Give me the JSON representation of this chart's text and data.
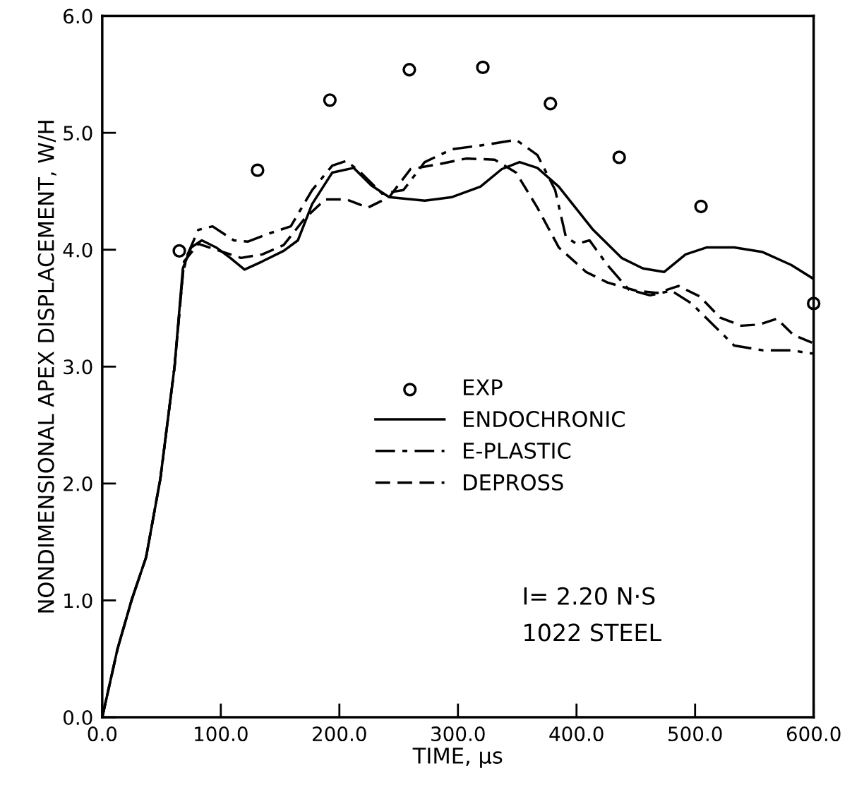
{
  "chart_data": {
    "type": "line",
    "xlabel": "TIME, μs",
    "ylabel": "NONDIMENSIONAL APEX DISPLACEMENT, W/H",
    "xlim": [
      0,
      600
    ],
    "ylim": [
      0,
      6
    ],
    "xticks": [
      {
        "value": 0,
        "label": "0.0"
      },
      {
        "value": 100,
        "label": "100.0"
      },
      {
        "value": 200,
        "label": "200.0"
      },
      {
        "value": 300,
        "label": "300.0"
      },
      {
        "value": 400,
        "label": "400.0"
      },
      {
        "value": 500,
        "label": "500.0"
      },
      {
        "value": 600,
        "label": "600.0"
      }
    ],
    "yticks": [
      {
        "value": 0,
        "label": "0.0"
      },
      {
        "value": 1,
        "label": "1.0"
      },
      {
        "value": 2,
        "label": "2.0"
      },
      {
        "value": 3,
        "label": "3.0"
      },
      {
        "value": 4,
        "label": "4.0"
      },
      {
        "value": 5,
        "label": "5.0"
      },
      {
        "value": 6,
        "label": "6.0"
      }
    ],
    "grid": false,
    "legend": "center",
    "annotations": [
      "I= 2.20 N·S",
      "1022 STEEL"
    ],
    "series": [
      {
        "name": "EXP",
        "type": "scatter",
        "marker": "circle",
        "color": "#000000",
        "x": [
          65,
          131,
          192,
          259,
          321,
          378,
          436,
          505,
          600
        ],
        "values": [
          3.99,
          4.68,
          5.28,
          5.54,
          5.56,
          5.25,
          4.79,
          4.37,
          3.54
        ]
      },
      {
        "name": "ENDOCHRONIC",
        "line_style": "solid",
        "color": "#000000",
        "x": [
          0,
          13,
          25,
          37,
          49,
          61,
          68,
          75,
          84,
          96,
          108,
          120,
          135,
          153,
          165,
          177,
          194,
          212,
          227,
          242,
          272,
          295,
          319,
          337,
          352,
          367,
          385,
          414,
          438,
          456,
          474,
          492,
          510,
          533,
          557,
          581,
          600
        ],
        "values": [
          0,
          0.59,
          1.01,
          1.37,
          2.04,
          3.0,
          3.84,
          4.02,
          4.08,
          4.02,
          3.93,
          3.83,
          3.9,
          3.99,
          4.08,
          4.39,
          4.66,
          4.7,
          4.55,
          4.45,
          4.42,
          4.45,
          4.54,
          4.69,
          4.75,
          4.7,
          4.54,
          4.17,
          3.93,
          3.84,
          3.81,
          3.96,
          4.02,
          4.02,
          3.98,
          3.87,
          3.75
        ]
      },
      {
        "name": "E-PLASTIC",
        "line_style": "dashdot",
        "color": "#000000",
        "x": [
          0,
          13,
          25,
          37,
          49,
          61,
          68,
          72,
          81,
          93,
          111,
          123,
          141,
          159,
          177,
          194,
          206,
          218,
          236,
          254,
          272,
          295,
          325,
          349,
          367,
          382,
          391,
          400,
          411,
          426,
          444,
          462,
          480,
          497,
          515,
          533,
          557,
          581,
          600
        ],
        "values": [
          0,
          0.59,
          1.01,
          1.37,
          2.04,
          3.0,
          3.8,
          3.96,
          4.17,
          4.2,
          4.08,
          4.07,
          4.14,
          4.2,
          4.51,
          4.72,
          4.76,
          4.66,
          4.48,
          4.51,
          4.75,
          4.86,
          4.9,
          4.94,
          4.81,
          4.51,
          4.11,
          4.05,
          4.08,
          3.87,
          3.66,
          3.61,
          3.65,
          3.54,
          3.36,
          3.18,
          3.14,
          3.14,
          3.11
        ]
      },
      {
        "name": "DEPROSS",
        "line_style": "dashed",
        "color": "#000000",
        "x": [
          0,
          13,
          25,
          37,
          49,
          61,
          69,
          81,
          99,
          117,
          135,
          153,
          171,
          188,
          206,
          224,
          242,
          260,
          283,
          307,
          331,
          349,
          367,
          385,
          408,
          426,
          450,
          468,
          486,
          504,
          521,
          539,
          554,
          569,
          583,
          600
        ],
        "values": [
          0,
          0.59,
          1.01,
          1.37,
          2.04,
          3.0,
          3.9,
          4.05,
          3.99,
          3.93,
          3.96,
          4.04,
          4.27,
          4.43,
          4.43,
          4.36,
          4.45,
          4.69,
          4.73,
          4.78,
          4.77,
          4.66,
          4.36,
          4.02,
          3.81,
          3.72,
          3.65,
          3.63,
          3.69,
          3.6,
          3.42,
          3.35,
          3.36,
          3.41,
          3.27,
          3.2
        ]
      }
    ]
  }
}
